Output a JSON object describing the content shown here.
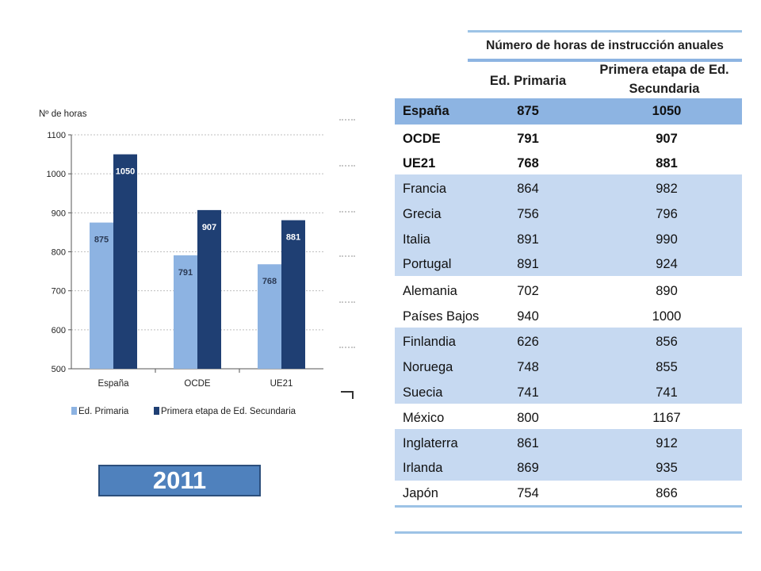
{
  "chart_data": {
    "type": "bar",
    "ylabel": "Nº de horas",
    "categories": [
      "España",
      "OCDE",
      "UE21"
    ],
    "ylim": [
      500,
      1100
    ],
    "yticks": [
      500,
      600,
      700,
      800,
      900,
      1000,
      1100
    ],
    "grid": true,
    "legend_position": "bottom",
    "series": [
      {
        "name": "Ed. Primaria",
        "values": [
          875,
          791,
          768
        ],
        "color": "#8db3e2"
      },
      {
        "name": "Primera etapa de Ed. Secundaria",
        "values": [
          1050,
          907,
          881
        ],
        "color": "#1f3f73"
      }
    ]
  },
  "table": {
    "title": "Número de horas de instrucción anuales",
    "col_primaria": "Ed. Primaria",
    "col_secundaria": "Primera etapa de Ed. Secundaria",
    "rows": [
      {
        "country": "España",
        "primaria": "875",
        "secundaria": "1050"
      },
      {
        "country": "OCDE",
        "primaria": "791",
        "secundaria": "907"
      },
      {
        "country": "UE21",
        "primaria": "768",
        "secundaria": "881"
      },
      {
        "country": "Francia",
        "primaria": "864",
        "secundaria": "982"
      },
      {
        "country": "Grecia",
        "primaria": "756",
        "secundaria": "796"
      },
      {
        "country": "Italia",
        "primaria": "891",
        "secundaria": "990"
      },
      {
        "country": "Portugal",
        "primaria": "891",
        "secundaria": "924"
      },
      {
        "country": "Alemania",
        "primaria": "702",
        "secundaria": "890"
      },
      {
        "country": "Países Bajos",
        "primaria": "940",
        "secundaria": "1000"
      },
      {
        "country": "Finlandia",
        "primaria": "626",
        "secundaria": "856"
      },
      {
        "country": "Noruega",
        "primaria": "748",
        "secundaria": "855"
      },
      {
        "country": "Suecia",
        "primaria": "741",
        "secundaria": "741"
      },
      {
        "country": "México",
        "primaria": "800",
        "secundaria": "1167"
      },
      {
        "country": "Inglaterra",
        "primaria": "861",
        "secundaria": "912"
      },
      {
        "country": "Irlanda",
        "primaria": "869",
        "secundaria": "935"
      },
      {
        "country": "Japón",
        "primaria": "754",
        "secundaria": "866"
      }
    ]
  },
  "year_label": "2011",
  "colors": {
    "band": "#c6d9f1",
    "highlight": "#8db4e2",
    "badge": "#4f81bd"
  }
}
